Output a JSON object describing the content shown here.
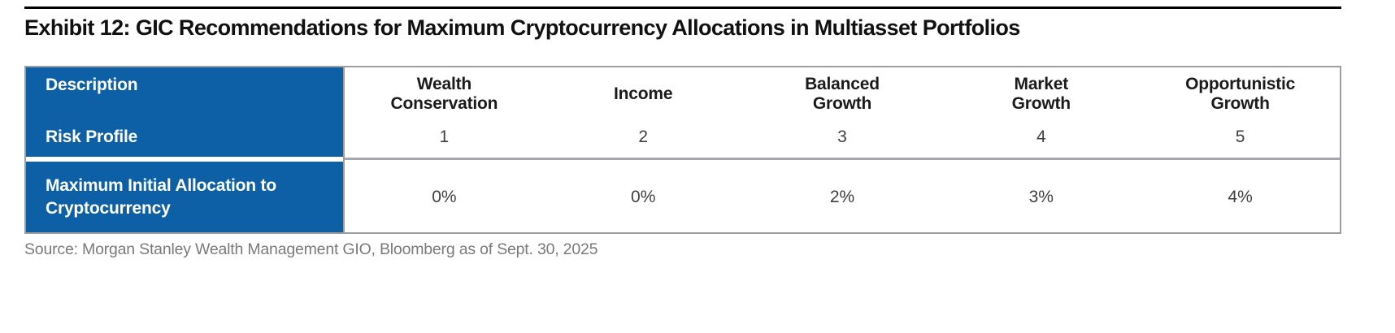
{
  "title": "Exhibit 12: GIC Recommendations for Maximum Cryptocurrency Allocations in Multiasset Portfolios",
  "source": "Source: Morgan Stanley Wealth Management GIO, Bloomberg as of Sept. 30, 2025",
  "table": {
    "row_labels": {
      "description": "Description",
      "risk_profile": "Risk Profile",
      "allocation_lines": [
        "Maximum Initial Allocation to",
        "Cryptocurrency"
      ]
    },
    "columns": [
      {
        "label_lines": [
          "Wealth",
          "Conservation"
        ],
        "risk_profile": "1",
        "max_allocation": "0%"
      },
      {
        "label_lines": [
          "Income"
        ],
        "risk_profile": "2",
        "max_allocation": "0%"
      },
      {
        "label_lines": [
          "Balanced",
          "Growth"
        ],
        "risk_profile": "3",
        "max_allocation": "2%"
      },
      {
        "label_lines": [
          "Market",
          "Growth"
        ],
        "risk_profile": "4",
        "max_allocation": "3%"
      },
      {
        "label_lines": [
          "Opportunistic",
          "Growth"
        ],
        "risk_profile": "5",
        "max_allocation": "4%"
      }
    ]
  },
  "colors": {
    "header_blue": "#0d60a5",
    "border_gray": "#9e9e9e",
    "divider_gray": "#a5a9ad",
    "title_black": "#111111",
    "header_text": "#1b1b1b",
    "value_text": "#3f3f3f",
    "source_gray": "#7a7a7a",
    "top_rule_black": "#000000"
  }
}
